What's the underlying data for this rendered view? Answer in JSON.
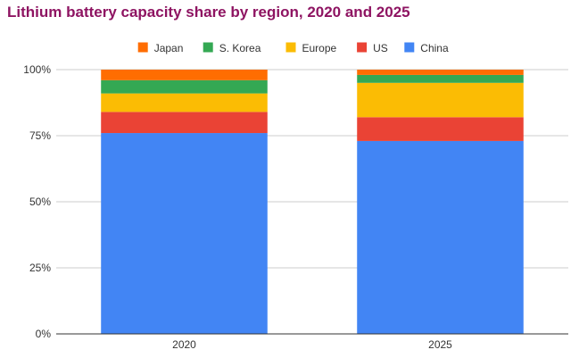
{
  "chart_data": {
    "type": "bar",
    "stacked": true,
    "title": "Lithium battery capacity share by region, 2020 and 2025",
    "xlabel": "",
    "ylabel": "",
    "categories": [
      "2020",
      "2025"
    ],
    "ylim": [
      0,
      100
    ],
    "yticks": [
      0,
      25,
      50,
      75,
      100
    ],
    "ytick_labels": [
      "0%",
      "25%",
      "50%",
      "75%",
      "100%"
    ],
    "grid": true,
    "legend_position": "top",
    "series": [
      {
        "name": "China",
        "color": "#4285f4",
        "values": [
          76,
          73
        ]
      },
      {
        "name": "US",
        "color": "#ea4335",
        "values": [
          8,
          9
        ]
      },
      {
        "name": "Europe",
        "color": "#fbbc04",
        "values": [
          7,
          13
        ]
      },
      {
        "name": "S. Korea",
        "color": "#34a853",
        "values": [
          5,
          3
        ]
      },
      {
        "name": "Japan",
        "color": "#ff6d01",
        "values": [
          4,
          2
        ]
      }
    ],
    "legend_order": [
      "Japan",
      "S. Korea",
      "Europe",
      "US",
      "China"
    ]
  }
}
